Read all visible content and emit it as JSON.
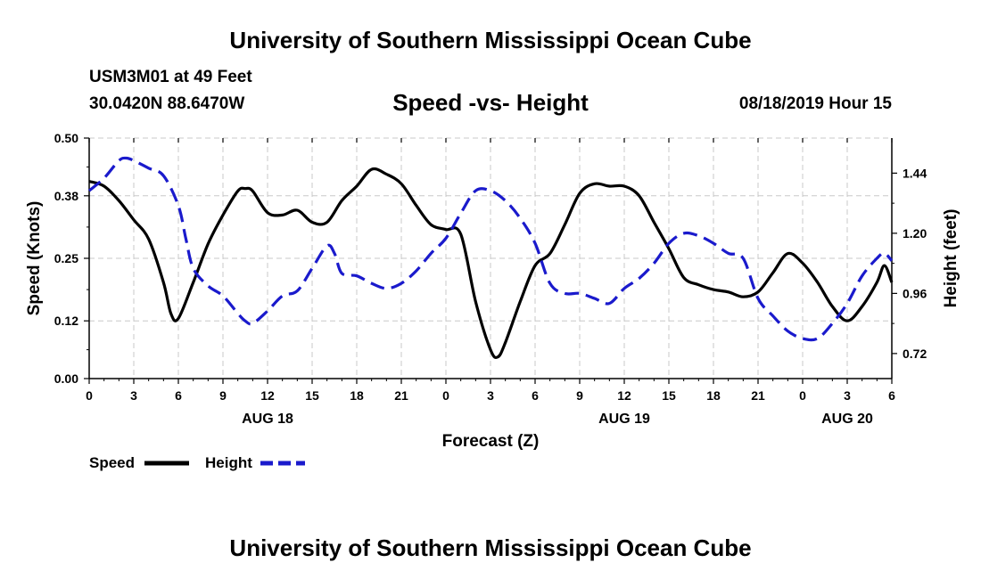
{
  "header": {
    "title": "University of Southern Mississippi Ocean Cube",
    "station": "USM3M01 at 49 Feet",
    "coords": "30.0420N 88.6470W",
    "subtitle": "Speed -vs- Height",
    "datetime": "08/18/2019 Hour 15"
  },
  "footer": {
    "title": "University of Southern Mississippi Ocean Cube"
  },
  "legend": {
    "speed_label": "Speed",
    "height_label": "Height"
  },
  "colors": {
    "speed": "#000000",
    "height": "#1a1acc",
    "grid": "#c8c8c8"
  },
  "chart_data": {
    "type": "line",
    "title": "Speed -vs- Height",
    "xlabel": "Forecast (Z)",
    "ylabel": "Speed (Knots)",
    "y2label": "Height (feet)",
    "xlim": [
      0,
      54
    ],
    "ylim": [
      0,
      0.5
    ],
    "y2lim": [
      0.62,
      1.58
    ],
    "x_ticks": [
      0,
      3,
      6,
      9,
      12,
      15,
      18,
      21,
      24,
      27,
      30,
      33,
      36,
      39,
      42,
      45,
      48,
      51,
      54
    ],
    "x_tick_labels": [
      "0",
      "3",
      "6",
      "9",
      "12",
      "15",
      "18",
      "21",
      "0",
      "3",
      "6",
      "9",
      "12",
      "15",
      "18",
      "21",
      "0",
      "3",
      "6"
    ],
    "y_ticks": [
      0.0,
      0.12,
      0.25,
      0.38,
      0.5
    ],
    "y_tick_labels": [
      "0.00",
      "0.12",
      "0.25",
      "0.38",
      "0.50"
    ],
    "y2_ticks": [
      0.72,
      0.96,
      1.2,
      1.44
    ],
    "y2_tick_labels": [
      "0.72",
      "0.96",
      "1.20",
      "1.44"
    ],
    "date_labels": [
      {
        "x": 12,
        "label": "AUG 18"
      },
      {
        "x": 36,
        "label": "AUG 19"
      },
      {
        "x": 51,
        "label": "AUG 20"
      }
    ],
    "grid": true,
    "series": [
      {
        "name": "Speed",
        "axis": "left",
        "style": "solid",
        "x": [
          0,
          1,
          2,
          3,
          4,
          5,
          5.5,
          6,
          7,
          8,
          9,
          10,
          10.5,
          11,
          12,
          13,
          14,
          15,
          16,
          17,
          18,
          19,
          20,
          21,
          22,
          23,
          24,
          25,
          26,
          27,
          27.5,
          28,
          29,
          30,
          31,
          32,
          33,
          34,
          35,
          36,
          37,
          38,
          39,
          40,
          41,
          42,
          43,
          44,
          45,
          46,
          47,
          48,
          49,
          50,
          51,
          52,
          53,
          53.5,
          54
        ],
        "values": [
          0.41,
          0.4,
          0.37,
          0.33,
          0.29,
          0.2,
          0.135,
          0.125,
          0.2,
          0.28,
          0.34,
          0.39,
          0.395,
          0.39,
          0.345,
          0.34,
          0.35,
          0.325,
          0.325,
          0.37,
          0.4,
          0.435,
          0.425,
          0.405,
          0.36,
          0.32,
          0.31,
          0.3,
          0.16,
          0.06,
          0.045,
          0.075,
          0.16,
          0.235,
          0.26,
          0.32,
          0.385,
          0.405,
          0.4,
          0.4,
          0.38,
          0.325,
          0.27,
          0.21,
          0.195,
          0.185,
          0.18,
          0.17,
          0.18,
          0.22,
          0.26,
          0.24,
          0.2,
          0.15,
          0.12,
          0.15,
          0.2,
          0.235,
          0.2
        ]
      },
      {
        "name": "Height",
        "axis": "right",
        "style": "dashed",
        "x": [
          0,
          1,
          2,
          2.5,
          3,
          4,
          5,
          6,
          6.5,
          7,
          8,
          9,
          10,
          10.5,
          11,
          12,
          13,
          14,
          15,
          16,
          16.5,
          17,
          18,
          19,
          20,
          21,
          22,
          23,
          24,
          25,
          26,
          27,
          28,
          29,
          30,
          31,
          32,
          33,
          34,
          35,
          36,
          37,
          38,
          39,
          40,
          41,
          42,
          43,
          44,
          45,
          46,
          47,
          48,
          49,
          50,
          51,
          52,
          53,
          53.5,
          54
        ],
        "values": [
          1.37,
          1.42,
          1.49,
          1.5,
          1.49,
          1.46,
          1.43,
          1.31,
          1.18,
          1.06,
          0.99,
          0.95,
          0.88,
          0.85,
          0.84,
          0.89,
          0.95,
          0.97,
          1.06,
          1.15,
          1.12,
          1.04,
          1.03,
          1.0,
          0.98,
          1.0,
          1.05,
          1.12,
          1.18,
          1.28,
          1.37,
          1.37,
          1.33,
          1.26,
          1.16,
          1.0,
          0.96,
          0.96,
          0.94,
          0.92,
          0.98,
          1.02,
          1.08,
          1.16,
          1.2,
          1.19,
          1.16,
          1.12,
          1.1,
          0.94,
          0.87,
          0.81,
          0.78,
          0.78,
          0.84,
          0.92,
          1.03,
          1.1,
          1.12,
          1.09
        ]
      }
    ]
  }
}
